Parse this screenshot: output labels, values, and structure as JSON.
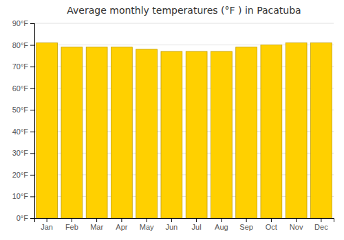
{
  "chart_data": {
    "type": "bar",
    "title": "Average monthly temperatures (°F ) in Pacatuba",
    "categories": [
      "Jan",
      "Feb",
      "Mar",
      "Apr",
      "May",
      "Jun",
      "Jul",
      "Aug",
      "Sep",
      "Oct",
      "Nov",
      "Dec"
    ],
    "values": [
      81,
      79,
      79,
      79,
      78,
      77,
      77,
      77,
      79,
      80,
      81,
      81
    ],
    "color": "#FFD000",
    "ylim": [
      0,
      90
    ],
    "yticks": [
      {
        "value": 0,
        "label": "0°F"
      },
      {
        "value": 10,
        "label": "10°F"
      },
      {
        "value": 20,
        "label": "20°F"
      },
      {
        "value": 30,
        "label": "30°F"
      },
      {
        "value": 40,
        "label": "40°F"
      },
      {
        "value": 50,
        "label": "50°F"
      },
      {
        "value": 60,
        "label": "60°F"
      },
      {
        "value": 70,
        "label": "70°F"
      },
      {
        "value": 80,
        "label": "80°F"
      },
      {
        "value": 90,
        "label": "90°F"
      }
    ],
    "grid": true
  }
}
